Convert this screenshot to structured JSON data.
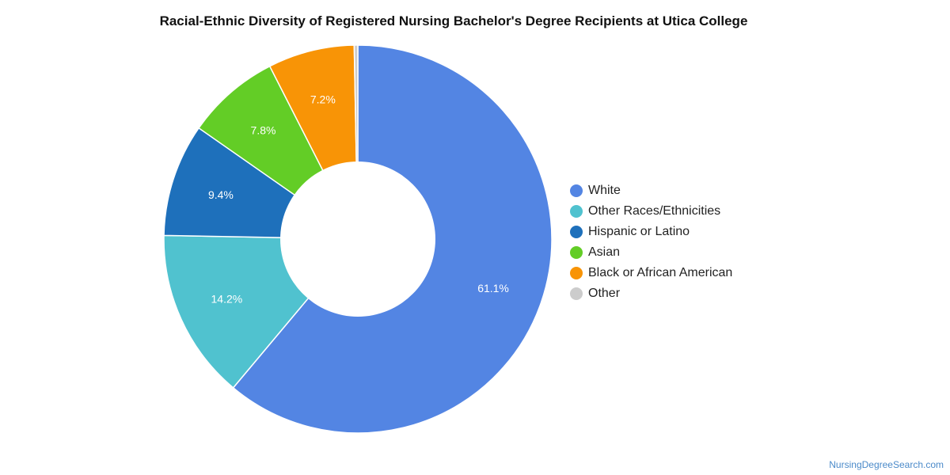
{
  "chart_data": {
    "type": "pie",
    "title": "Racial-Ethnic Diversity of Registered Nursing Bachelor's Degree Recipients at Utica College",
    "donut": true,
    "legend_position": "right",
    "categories": [
      "White",
      "Other Races/Ethnicities",
      "Hispanic or Latino",
      "Asian",
      "Black or African American",
      "Other"
    ],
    "values": [
      61.1,
      14.2,
      9.4,
      7.8,
      7.2,
      0.3
    ],
    "labels": [
      "61.1%",
      "14.2%",
      "9.4%",
      "7.8%",
      "7.2%",
      ""
    ],
    "colors": [
      "#5385e3",
      "#50c2cf",
      "#1e70bb",
      "#63cd26",
      "#f89406",
      "#cccccc"
    ]
  },
  "footer": {
    "source": "NursingDegreeSearch.com"
  }
}
